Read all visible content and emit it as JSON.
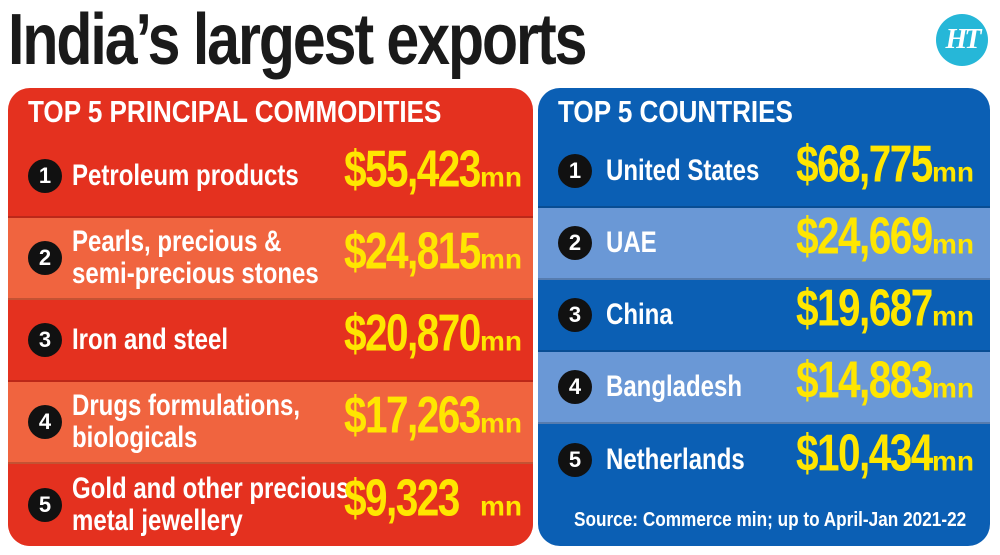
{
  "title": "India’s largest exports",
  "logo": {
    "icon": "ht-logo",
    "text": "HT"
  },
  "commodities": {
    "header": "TOP 5 PRINCIPAL COMMODITIES",
    "items": [
      {
        "rank": "1",
        "lines": [
          "Petroleum products"
        ],
        "amount": "$55,423",
        "unit": "mn"
      },
      {
        "rank": "2",
        "lines": [
          "Pearls, precious &",
          "semi-precious stones"
        ],
        "amount": "$24,815",
        "unit": "mn"
      },
      {
        "rank": "3",
        "lines": [
          "Iron and steel"
        ],
        "amount": "$20,870",
        "unit": "mn"
      },
      {
        "rank": "4",
        "lines": [
          "Drugs formulations,",
          "biologicals"
        ],
        "amount": "$17,263",
        "unit": "mn"
      },
      {
        "rank": "5",
        "lines": [
          "Gold and other precious",
          "metal jewellery"
        ],
        "amount": "$9,323",
        "unit": "mn"
      }
    ]
  },
  "countries": {
    "header": "TOP 5 COUNTRIES",
    "items": [
      {
        "rank": "1",
        "label": "United States",
        "amount": "$68,775",
        "unit": "mn"
      },
      {
        "rank": "2",
        "label": "UAE",
        "amount": "$24,669",
        "unit": "mn"
      },
      {
        "rank": "3",
        "label": "China",
        "amount": "$19,687",
        "unit": "mn"
      },
      {
        "rank": "4",
        "label": "Bangladesh",
        "amount": "$14,883",
        "unit": "mn"
      },
      {
        "rank": "5",
        "label": "Netherlands",
        "amount": "$10,434",
        "unit": "mn"
      }
    ],
    "source": "Source: Commerce min; up to April-Jan 2021-22"
  },
  "colors": {
    "commodities_panel": "#e4311f",
    "commodities_alt_row": "#f0643f",
    "countries_panel": "#0b5fb4",
    "countries_alt_row": "#6a98d6",
    "value_text": "#ffe600",
    "logo_bg": "#26b7d8"
  }
}
